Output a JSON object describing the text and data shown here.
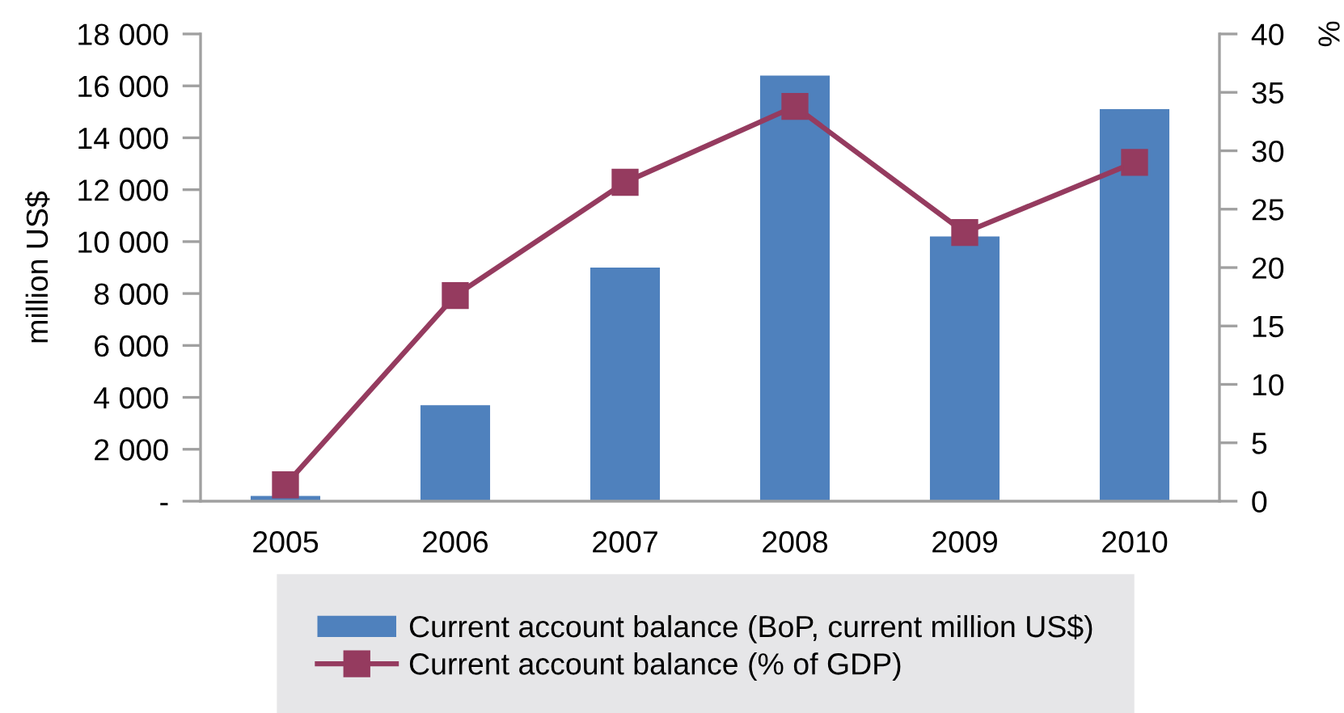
{
  "chart_data": {
    "type": "bar",
    "categories": [
      "2005",
      "2006",
      "2007",
      "2008",
      "2009",
      "2010"
    ],
    "series": [
      {
        "name": "Current account balance (BoP, current million US$)",
        "color": "#4f81bd",
        "values": [
          200,
          3700,
          9000,
          16400,
          10200,
          15100
        ]
      },
      {
        "name": "Current account balance (% of GDP)",
        "type": "line",
        "axis": "y2",
        "color": "#953b5f",
        "marker": "square",
        "line_style": "solid",
        "values": [
          1.4,
          17.6,
          27.3,
          33.8,
          23.0,
          29.0
        ]
      }
    ],
    "ylabel": "million US$",
    "y2label": "%",
    "ylim": [
      0,
      18000
    ],
    "yticks": [
      {
        "value": 0,
        "label": "-"
      },
      {
        "value": 2000,
        "label": "2 000"
      },
      {
        "value": 4000,
        "label": "4 000"
      },
      {
        "value": 6000,
        "label": "6 000"
      },
      {
        "value": 8000,
        "label": "8 000"
      },
      {
        "value": 10000,
        "label": "10 000"
      },
      {
        "value": 12000,
        "label": "12 000"
      },
      {
        "value": 14000,
        "label": "14 000"
      },
      {
        "value": 16000,
        "label": "16 000"
      },
      {
        "value": 18000,
        "label": "18 000"
      }
    ],
    "y2lim": [
      0,
      40
    ],
    "y2ticks": [
      0,
      5,
      10,
      15,
      20,
      25,
      30,
      35,
      40
    ],
    "grid": false,
    "legend": "bottom"
  }
}
